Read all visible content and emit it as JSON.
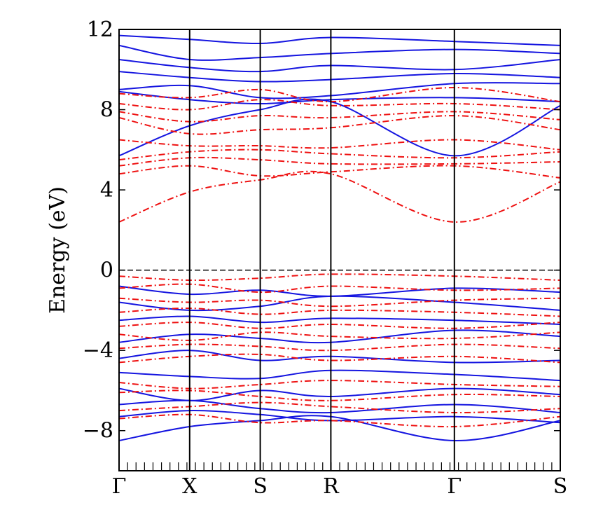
{
  "chart_data": {
    "type": "line",
    "title": "",
    "xlabel": "",
    "ylabel": "Energy (eV)",
    "ylim": [
      -10,
      12
    ],
    "y_ticks": [
      -8,
      -4,
      0,
      4,
      8,
      12
    ],
    "y_tick_labels": [
      "−8",
      "−4",
      "0",
      "4",
      "8",
      "12"
    ],
    "k_points": [
      {
        "label": "Γ",
        "pos": 0.0
      },
      {
        "label": "X",
        "pos": 1.0
      },
      {
        "label": "S",
        "pos": 2.0
      },
      {
        "label": "R",
        "pos": 3.0
      },
      {
        "label": "Γ",
        "pos": 4.75
      },
      {
        "label": "S",
        "pos": 6.25
      }
    ],
    "x_range": [
      0,
      6.25
    ],
    "fermi_level": 0,
    "colors": {
      "blue": "#1515e0",
      "red": "#ee1111",
      "axis": "#000000"
    },
    "series": [
      {
        "style": "solid",
        "color": "blue",
        "x": [
          0,
          1,
          2,
          3,
          4.75,
          6.25
        ],
        "y": [
          5.7,
          7.2,
          8.0,
          8.4,
          5.7,
          8.2
        ]
      },
      {
        "style": "solid",
        "color": "blue",
        "x": [
          0,
          1,
          2,
          3,
          4.75,
          6.25
        ],
        "y": [
          8.9,
          8.5,
          8.3,
          8.5,
          8.6,
          8.4
        ]
      },
      {
        "style": "solid",
        "color": "blue",
        "x": [
          0,
          1,
          2,
          3,
          4.75,
          6.25
        ],
        "y": [
          9.0,
          9.2,
          8.6,
          8.7,
          9.3,
          9.3
        ]
      },
      {
        "style": "solid",
        "color": "blue",
        "x": [
          0,
          1,
          2,
          3,
          4.75,
          6.25
        ],
        "y": [
          9.9,
          9.6,
          9.4,
          9.5,
          9.8,
          9.6
        ]
      },
      {
        "style": "solid",
        "color": "blue",
        "x": [
          0,
          1,
          2,
          3,
          4.75,
          6.25
        ],
        "y": [
          10.5,
          10.1,
          9.9,
          10.2,
          10.0,
          10.5
        ]
      },
      {
        "style": "solid",
        "color": "blue",
        "x": [
          0,
          1,
          2,
          3,
          4.75,
          6.25
        ],
        "y": [
          11.2,
          10.5,
          10.6,
          10.8,
          11.0,
          10.8
        ]
      },
      {
        "style": "solid",
        "color": "blue",
        "x": [
          0,
          1,
          2,
          3,
          4.75,
          6.25
        ],
        "y": [
          11.7,
          11.5,
          11.3,
          11.6,
          11.4,
          11.2
        ]
      },
      {
        "style": "solid",
        "color": "blue",
        "x": [
          0,
          1,
          2,
          3,
          4.75,
          6.25
        ],
        "y": [
          -0.8,
          -1.2,
          -1.0,
          -1.3,
          -0.9,
          -1.1
        ]
      },
      {
        "style": "solid",
        "color": "blue",
        "x": [
          0,
          1,
          2,
          3,
          4.75,
          6.25
        ],
        "y": [
          -1.6,
          -2.0,
          -1.8,
          -1.3,
          -1.6,
          -2.0
        ]
      },
      {
        "style": "solid",
        "color": "blue",
        "x": [
          0,
          1,
          2,
          3,
          4.75,
          6.25
        ],
        "y": [
          -2.5,
          -2.3,
          -2.6,
          -2.4,
          -2.5,
          -2.7
        ]
      },
      {
        "style": "solid",
        "color": "blue",
        "x": [
          0,
          1,
          2,
          3,
          4.75,
          6.25
        ],
        "y": [
          -3.6,
          -3.2,
          -3.4,
          -3.6,
          -3.0,
          -3.3
        ]
      },
      {
        "style": "solid",
        "color": "blue",
        "x": [
          0,
          1,
          2,
          3,
          4.75,
          6.25
        ],
        "y": [
          -4.4,
          -4.0,
          -4.5,
          -4.3,
          -4.6,
          -4.5
        ]
      },
      {
        "style": "solid",
        "color": "blue",
        "x": [
          0,
          1,
          2,
          3,
          4.75,
          6.25
        ],
        "y": [
          -5.1,
          -5.3,
          -5.4,
          -5.0,
          -5.2,
          -5.5
        ]
      },
      {
        "style": "solid",
        "color": "blue",
        "x": [
          0,
          1,
          2,
          3,
          4.75,
          6.25
        ],
        "y": [
          -5.9,
          -6.5,
          -6.0,
          -6.3,
          -5.9,
          -6.2
        ]
      },
      {
        "style": "solid",
        "color": "blue",
        "x": [
          0,
          1,
          2,
          3,
          4.75,
          6.25
        ],
        "y": [
          -6.7,
          -6.5,
          -6.9,
          -7.1,
          -6.7,
          -7.1
        ]
      },
      {
        "style": "solid",
        "color": "blue",
        "x": [
          0,
          1,
          2,
          3,
          4.75,
          6.25
        ],
        "y": [
          -7.3,
          -7.0,
          -7.2,
          -7.5,
          -7.3,
          -7.6
        ]
      },
      {
        "style": "solid",
        "color": "blue",
        "x": [
          0,
          1,
          2,
          3,
          4.75,
          6.25
        ],
        "y": [
          -8.5,
          -7.8,
          -7.5,
          -7.3,
          -8.5,
          -7.5
        ]
      },
      {
        "style": "dashdot",
        "color": "red",
        "x": [
          0,
          1,
          2,
          3,
          4.75,
          6.25
        ],
        "y": [
          2.4,
          3.9,
          4.5,
          4.8,
          2.4,
          4.4
        ]
      },
      {
        "style": "dashdot",
        "color": "red",
        "x": [
          0,
          1,
          2,
          3,
          4.75,
          6.25
        ],
        "y": [
          4.8,
          5.2,
          4.7,
          4.9,
          5.2,
          4.6
        ]
      },
      {
        "style": "dashdot",
        "color": "red",
        "x": [
          0,
          1,
          2,
          3,
          4.75,
          6.25
        ],
        "y": [
          5.2,
          5.6,
          5.5,
          5.3,
          5.3,
          5.4
        ]
      },
      {
        "style": "dashdot",
        "color": "red",
        "x": [
          0,
          1,
          2,
          3,
          4.75,
          6.25
        ],
        "y": [
          5.5,
          5.9,
          6.0,
          5.8,
          5.6,
          5.9
        ]
      },
      {
        "style": "dashdot",
        "color": "red",
        "x": [
          0,
          1,
          2,
          3,
          4.75,
          6.25
        ],
        "y": [
          6.5,
          6.2,
          6.2,
          6.1,
          6.5,
          6.0
        ]
      },
      {
        "style": "dashdot",
        "color": "red",
        "x": [
          0,
          1,
          2,
          3,
          4.75,
          6.25
        ],
        "y": [
          7.6,
          6.8,
          7.0,
          7.1,
          7.7,
          7.0
        ]
      },
      {
        "style": "dashdot",
        "color": "red",
        "x": [
          0,
          1,
          2,
          3,
          4.75,
          6.25
        ],
        "y": [
          7.9,
          7.4,
          7.7,
          7.6,
          7.9,
          7.5
        ]
      },
      {
        "style": "dashdot",
        "color": "red",
        "x": [
          0,
          1,
          2,
          3,
          4.75,
          6.25
        ],
        "y": [
          8.3,
          8.0,
          8.5,
          8.2,
          8.3,
          8.0
        ]
      },
      {
        "style": "dashdot",
        "color": "red",
        "x": [
          0,
          1,
          2,
          3,
          4.75,
          6.25
        ],
        "y": [
          8.8,
          8.6,
          9.0,
          8.4,
          9.1,
          8.4
        ]
      },
      {
        "style": "dashdot",
        "color": "red",
        "x": [
          0,
          1,
          2,
          3,
          4.75,
          6.25
        ],
        "y": [
          -0.3,
          -0.5,
          -0.4,
          -0.2,
          -0.3,
          -0.5
        ]
      },
      {
        "style": "dashdot",
        "color": "red",
        "x": [
          0,
          1,
          2,
          3,
          4.75,
          6.25
        ],
        "y": [
          -0.9,
          -0.7,
          -1.1,
          -0.8,
          -1.0,
          -0.9
        ]
      },
      {
        "style": "dashdot",
        "color": "red",
        "x": [
          0,
          1,
          2,
          3,
          4.75,
          6.25
        ],
        "y": [
          -1.4,
          -1.6,
          -1.5,
          -1.8,
          -1.5,
          -1.4
        ]
      },
      {
        "style": "dashdot",
        "color": "red",
        "x": [
          0,
          1,
          2,
          3,
          4.75,
          6.25
        ],
        "y": [
          -2.1,
          -1.9,
          -2.2,
          -2.0,
          -2.1,
          -2.3
        ]
      },
      {
        "style": "dashdot",
        "color": "red",
        "x": [
          0,
          1,
          2,
          3,
          4.75,
          6.25
        ],
        "y": [
          -2.8,
          -2.6,
          -2.9,
          -2.7,
          -2.9,
          -2.6
        ]
      },
      {
        "style": "dashdot",
        "color": "red",
        "x": [
          0,
          1,
          2,
          3,
          4.75,
          6.25
        ],
        "y": [
          -3.2,
          -3.5,
          -3.1,
          -3.3,
          -3.4,
          -3.1
        ]
      },
      {
        "style": "dashdot",
        "color": "red",
        "x": [
          0,
          1,
          2,
          3,
          4.75,
          6.25
        ],
        "y": [
          -3.9,
          -3.7,
          -3.8,
          -4.0,
          -3.7,
          -3.9
        ]
      },
      {
        "style": "dashdot",
        "color": "red",
        "x": [
          0,
          1,
          2,
          3,
          4.75,
          6.25
        ],
        "y": [
          -4.6,
          -4.3,
          -4.2,
          -4.5,
          -4.3,
          -4.6
        ]
      },
      {
        "style": "dashdot",
        "color": "red",
        "x": [
          0,
          1,
          2,
          3,
          4.75,
          6.25
        ],
        "y": [
          -5.6,
          -5.9,
          -5.7,
          -5.5,
          -5.7,
          -5.8
        ]
      },
      {
        "style": "dashdot",
        "color": "red",
        "x": [
          0,
          1,
          2,
          3,
          4.75,
          6.25
        ],
        "y": [
          -6.1,
          -6.0,
          -6.3,
          -6.5,
          -6.2,
          -6.3
        ]
      },
      {
        "style": "dashdot",
        "color": "red",
        "x": [
          0,
          1,
          2,
          3,
          4.75,
          6.25
        ],
        "y": [
          -7.0,
          -6.8,
          -6.6,
          -6.8,
          -7.1,
          -6.9
        ]
      },
      {
        "style": "dashdot",
        "color": "red",
        "x": [
          0,
          1,
          2,
          3,
          4.75,
          6.25
        ],
        "y": [
          -7.4,
          -7.2,
          -7.6,
          -7.5,
          -7.8,
          -7.3
        ]
      }
    ]
  }
}
